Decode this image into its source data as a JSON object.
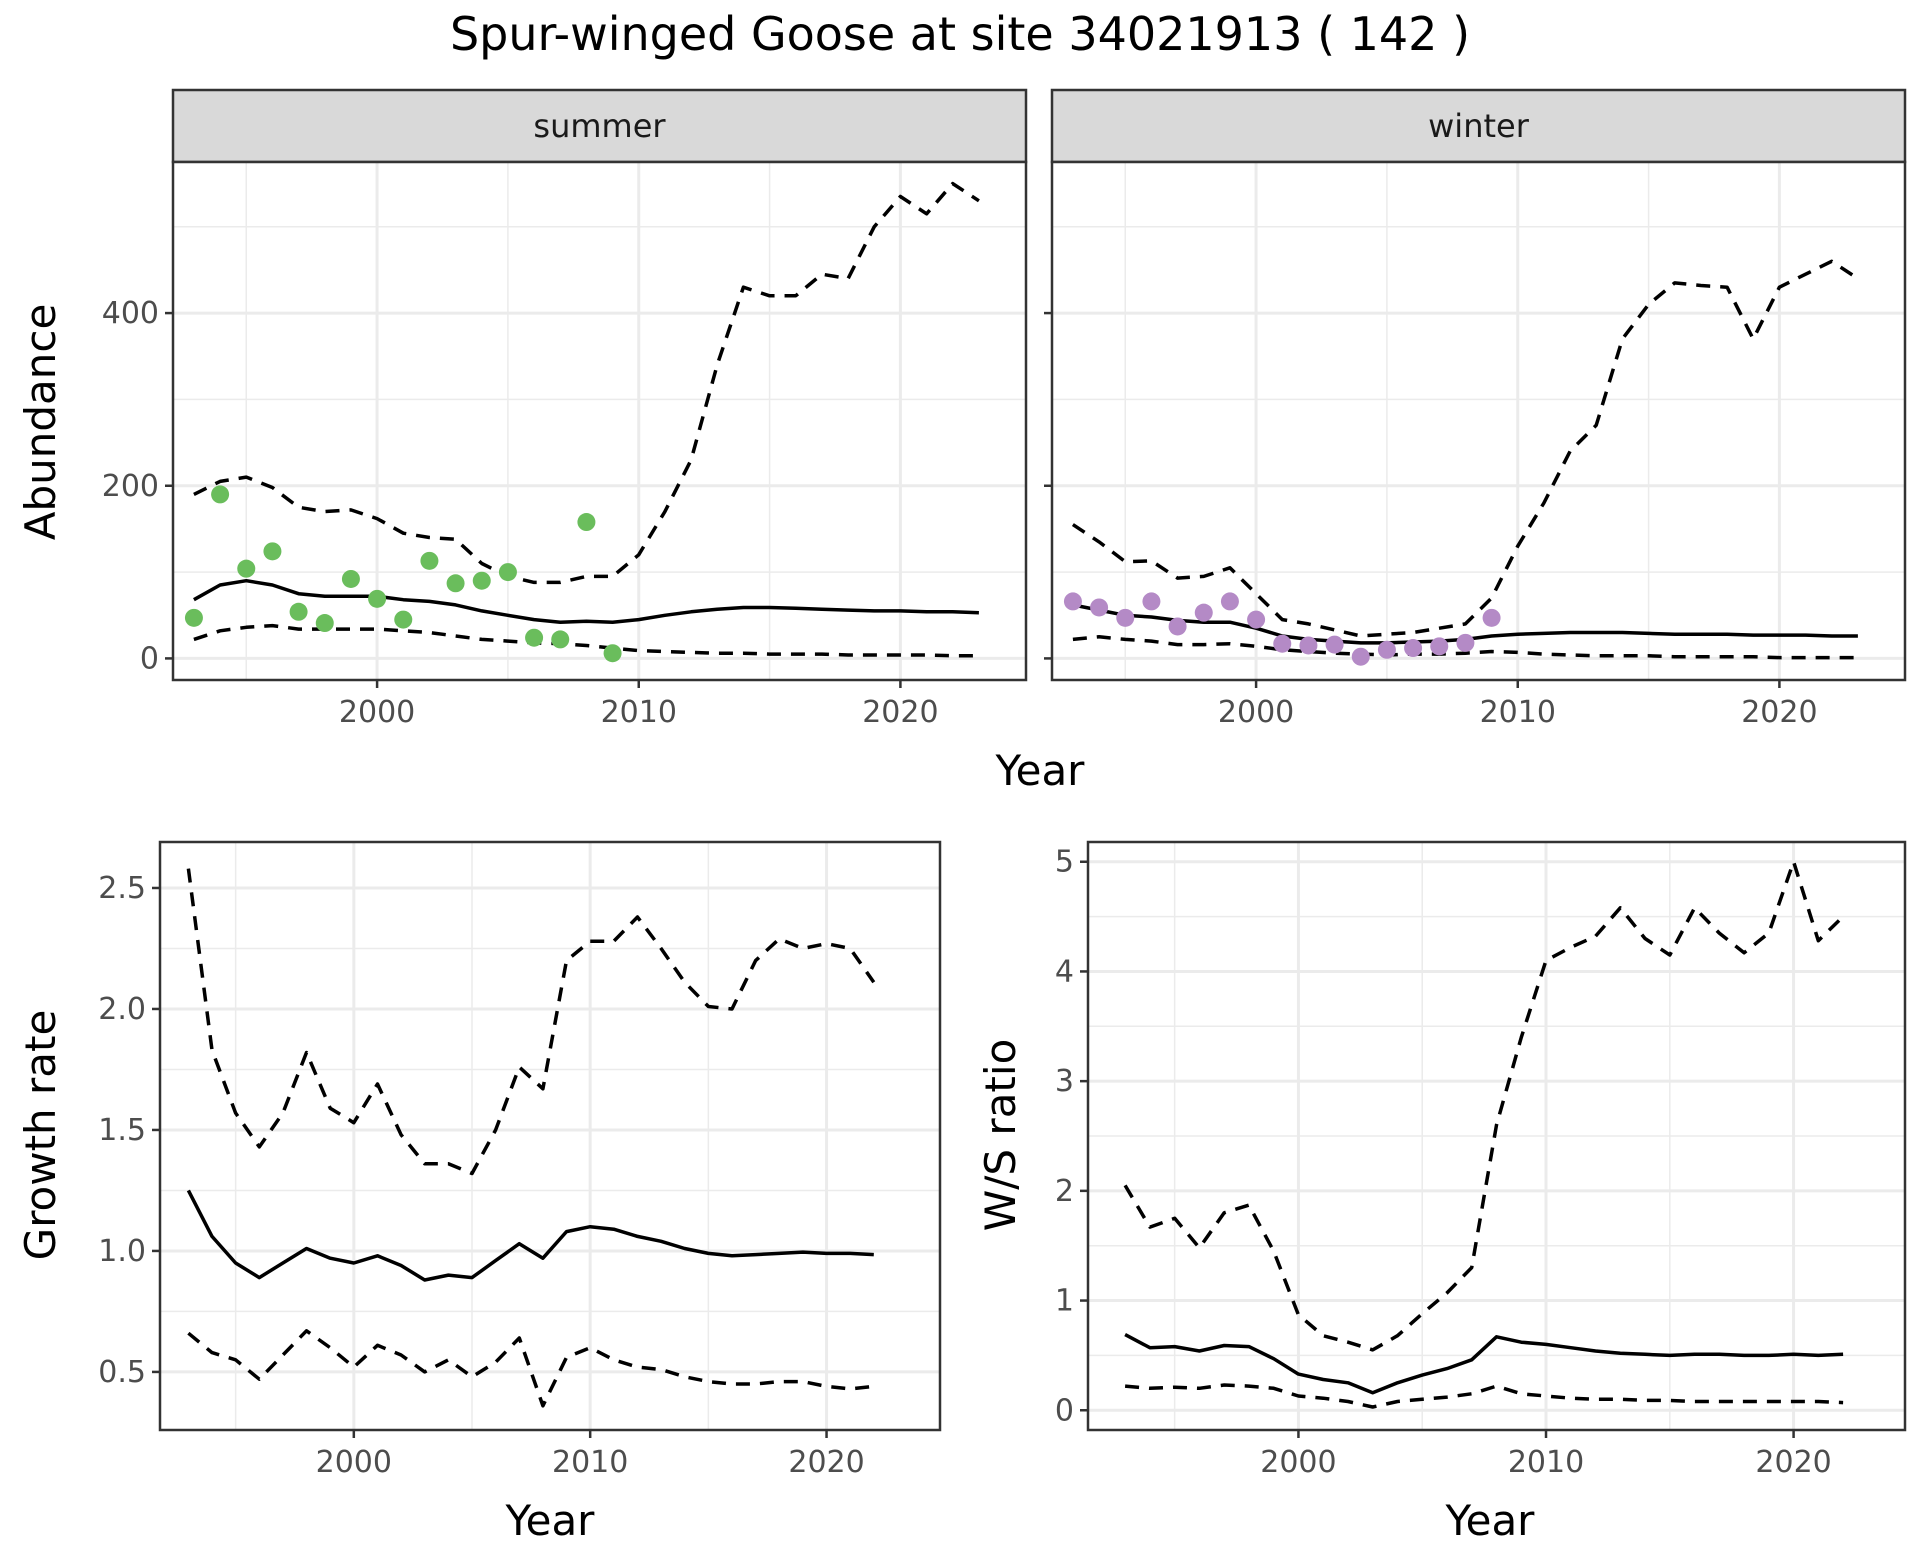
{
  "title": "Spur-winged Goose at site 34021913 ( 142 )",
  "colors": {
    "summer_points": "#6abd5c",
    "winter_points": "#b48ac6",
    "lines": "#000000"
  },
  "top": {
    "xlabel": "Year",
    "ylabel": "Abundance",
    "xticks": [
      2000,
      2010,
      2020
    ],
    "yticks": [
      0,
      200,
      400
    ]
  },
  "chart_data": [
    {
      "type": "line",
      "facet": "summer",
      "xlabel": "Year",
      "ylabel": "Abundance",
      "xlim": [
        1992.2,
        2024.8
      ],
      "ylim": [
        -25,
        575
      ],
      "grid": true,
      "years": [
        1993,
        1994,
        1995,
        1996,
        1997,
        1998,
        1999,
        2000,
        2001,
        2002,
        2003,
        2004,
        2005,
        2006,
        2007,
        2008,
        2009,
        2010,
        2011,
        2012,
        2013,
        2014,
        2015,
        2016,
        2017,
        2018,
        2019,
        2020,
        2021,
        2022,
        2023
      ],
      "series": [
        {
          "style": "solid",
          "values": [
            68,
            85,
            90,
            85,
            75,
            72,
            72,
            72,
            68,
            66,
            62,
            55,
            50,
            45,
            42,
            43,
            42,
            45,
            50,
            54,
            57,
            59,
            59,
            58,
            57,
            56,
            55,
            55,
            54,
            54,
            53
          ]
        },
        {
          "style": "dashed-lower",
          "values": [
            22,
            32,
            36,
            38,
            34,
            34,
            34,
            34,
            32,
            30,
            26,
            22,
            20,
            18,
            17,
            15,
            12,
            9,
            8,
            7,
            6,
            6,
            5,
            5,
            5,
            4,
            4,
            4,
            4,
            3,
            3
          ]
        },
        {
          "style": "dashed-upper",
          "values": [
            190,
            205,
            210,
            198,
            175,
            170,
            172,
            162,
            145,
            140,
            138,
            110,
            95,
            88,
            88,
            95,
            95,
            120,
            170,
            230,
            340,
            430,
            420,
            420,
            445,
            440,
            500,
            535,
            515,
            550,
            530
          ]
        },
        {
          "style": "points",
          "x": [
            1993,
            1994,
            1995,
            1996,
            1997,
            1998,
            1999,
            2000,
            2001,
            2002,
            2003,
            2004,
            2005,
            2006,
            2007,
            2008,
            2009
          ],
          "values": [
            47,
            190,
            104,
            124,
            54,
            41,
            92,
            69,
            45,
            113,
            87,
            90,
            100,
            24,
            22,
            158,
            6
          ]
        }
      ]
    },
    {
      "type": "line",
      "facet": "winter",
      "xlabel": "Year",
      "ylabel": "Abundance",
      "xlim": [
        1992.2,
        2024.8
      ],
      "ylim": [
        -25,
        575
      ],
      "grid": true,
      "years": [
        1993,
        1994,
        1995,
        1996,
        1997,
        1998,
        1999,
        2000,
        2001,
        2002,
        2003,
        2004,
        2005,
        2006,
        2007,
        2008,
        2009,
        2010,
        2011,
        2012,
        2013,
        2014,
        2015,
        2016,
        2017,
        2018,
        2019,
        2020,
        2021,
        2022,
        2023
      ],
      "series": [
        {
          "style": "solid",
          "values": [
            62,
            56,
            50,
            48,
            44,
            42,
            42,
            35,
            26,
            22,
            20,
            18,
            18,
            19,
            20,
            22,
            26,
            28,
            29,
            30,
            30,
            30,
            29,
            28,
            28,
            28,
            27,
            27,
            27,
            26,
            26
          ]
        },
        {
          "style": "dashed-lower",
          "values": [
            22,
            25,
            22,
            20,
            16,
            16,
            17,
            14,
            10,
            8,
            6,
            5,
            4,
            5,
            5,
            6,
            8,
            7,
            5,
            4,
            3,
            3,
            3,
            2,
            2,
            2,
            2,
            1,
            1,
            1,
            1
          ]
        },
        {
          "style": "dashed-upper",
          "values": [
            155,
            135,
            112,
            113,
            93,
            95,
            105,
            75,
            45,
            40,
            33,
            26,
            28,
            30,
            35,
            40,
            70,
            130,
            180,
            240,
            270,
            370,
            410,
            435,
            432,
            430,
            370,
            430,
            445,
            460,
            440
          ]
        },
        {
          "style": "points",
          "x": [
            1993,
            1994,
            1995,
            1996,
            1997,
            1998,
            1999,
            2000,
            2001,
            2002,
            2003,
            2004,
            2005,
            2006,
            2007,
            2008,
            2009
          ],
          "values": [
            66,
            59,
            47,
            66,
            37,
            53,
            66,
            45,
            17,
            15,
            16,
            2,
            10,
            12,
            14,
            18,
            47
          ]
        }
      ]
    },
    {
      "type": "line",
      "xlabel": "Year",
      "ylabel": "Growth rate",
      "xlim": [
        1991.8,
        2024.8
      ],
      "ylim": [
        0.26,
        2.69
      ],
      "yticks": [
        0.5,
        1.0,
        1.5,
        2.0,
        2.5
      ],
      "xticks": [
        2000,
        2010,
        2020
      ],
      "grid": true,
      "years": [
        1993,
        1994,
        1995,
        1996,
        1997,
        1998,
        1999,
        2000,
        2001,
        2002,
        2003,
        2004,
        2005,
        2006,
        2007,
        2008,
        2009,
        2010,
        2011,
        2012,
        2013,
        2014,
        2015,
        2016,
        2017,
        2018,
        2019,
        2020,
        2021,
        2022
      ],
      "series": [
        {
          "style": "solid",
          "values": [
            1.25,
            1.06,
            0.95,
            0.89,
            0.95,
            1.01,
            0.97,
            0.95,
            0.98,
            0.94,
            0.88,
            0.9,
            0.89,
            0.96,
            1.03,
            0.97,
            1.08,
            1.1,
            1.09,
            1.06,
            1.04,
            1.01,
            0.99,
            0.98,
            0.985,
            0.99,
            0.995,
            0.99,
            0.99,
            0.985
          ]
        },
        {
          "style": "dashed-lower",
          "values": [
            0.66,
            0.58,
            0.55,
            0.47,
            0.57,
            0.67,
            0.6,
            0.52,
            0.61,
            0.57,
            0.5,
            0.55,
            0.48,
            0.54,
            0.64,
            0.36,
            0.56,
            0.6,
            0.55,
            0.52,
            0.51,
            0.48,
            0.46,
            0.45,
            0.45,
            0.46,
            0.46,
            0.44,
            0.43,
            0.44
          ]
        },
        {
          "style": "dashed-upper",
          "values": [
            2.58,
            1.83,
            1.57,
            1.43,
            1.57,
            1.82,
            1.59,
            1.53,
            1.69,
            1.48,
            1.36,
            1.36,
            1.32,
            1.5,
            1.76,
            1.67,
            2.2,
            2.28,
            2.28,
            2.38,
            2.25,
            2.11,
            2.01,
            2.0,
            2.2,
            2.29,
            2.25,
            2.27,
            2.25,
            2.11
          ]
        }
      ]
    },
    {
      "type": "line",
      "xlabel": "Year",
      "ylabel": "W/S ratio",
      "xlim": [
        1991.5,
        2024.5
      ],
      "ylim": [
        -0.18,
        5.18
      ],
      "yticks": [
        0,
        1,
        2,
        3,
        4,
        5
      ],
      "xticks": [
        2000,
        2010,
        2020
      ],
      "grid": true,
      "years": [
        1993,
        1994,
        1995,
        1996,
        1997,
        1998,
        1999,
        2000,
        2001,
        2002,
        2003,
        2004,
        2005,
        2006,
        2007,
        2008,
        2009,
        2010,
        2011,
        2012,
        2013,
        2014,
        2015,
        2016,
        2017,
        2018,
        2019,
        2020,
        2021,
        2022
      ],
      "series": [
        {
          "style": "solid",
          "values": [
            0.69,
            0.57,
            0.58,
            0.54,
            0.59,
            0.58,
            0.47,
            0.33,
            0.28,
            0.25,
            0.16,
            0.25,
            0.32,
            0.38,
            0.46,
            0.67,
            0.62,
            0.6,
            0.57,
            0.54,
            0.52,
            0.51,
            0.5,
            0.51,
            0.51,
            0.5,
            0.5,
            0.51,
            0.5,
            0.51
          ]
        },
        {
          "style": "dashed-lower",
          "values": [
            0.22,
            0.2,
            0.21,
            0.2,
            0.23,
            0.22,
            0.2,
            0.13,
            0.11,
            0.08,
            0.03,
            0.08,
            0.1,
            0.12,
            0.15,
            0.22,
            0.15,
            0.13,
            0.11,
            0.1,
            0.1,
            0.09,
            0.09,
            0.08,
            0.08,
            0.08,
            0.08,
            0.08,
            0.08,
            0.07
          ]
        },
        {
          "style": "dashed-upper",
          "values": [
            2.05,
            1.67,
            1.75,
            1.48,
            1.8,
            1.87,
            1.45,
            0.87,
            0.68,
            0.62,
            0.55,
            0.68,
            0.88,
            1.07,
            1.3,
            2.6,
            3.4,
            4.1,
            4.22,
            4.32,
            4.58,
            4.3,
            4.15,
            4.58,
            4.35,
            4.17,
            4.35,
            5.0,
            4.28,
            4.5
          ]
        }
      ]
    }
  ]
}
